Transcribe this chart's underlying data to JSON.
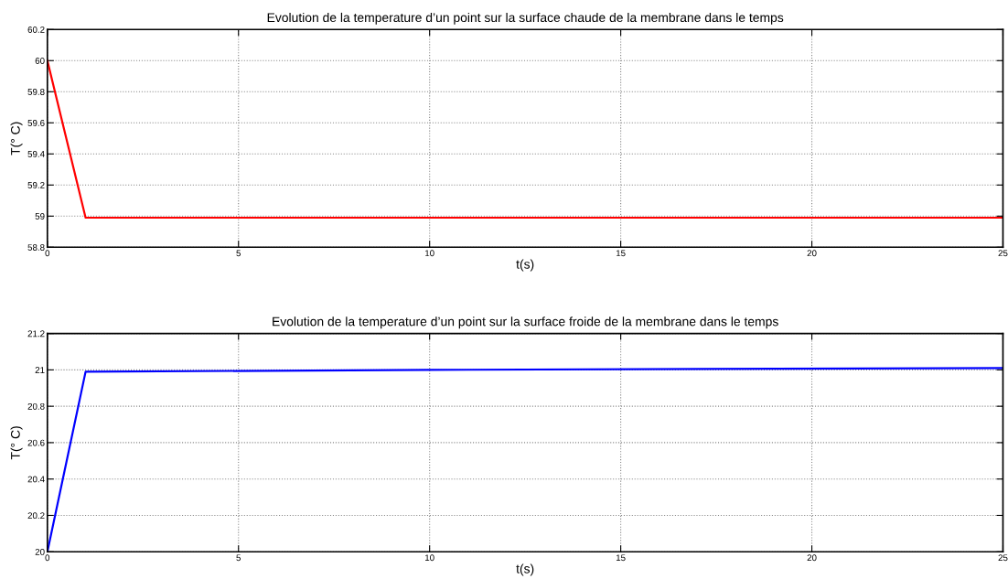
{
  "chart_data": [
    {
      "type": "line",
      "title": "Evolution de la temperature d’un point sur la surface chaude de la membrane dans le temps",
      "xlabel": "t(s)",
      "ylabel": "T(° C)",
      "xlim": [
        0,
        25
      ],
      "ylim": [
        58.8,
        60.2
      ],
      "xticks": [
        0,
        5,
        10,
        15,
        20,
        25
      ],
      "yticks": [
        58.8,
        59,
        59.2,
        59.4,
        59.6,
        59.8,
        60,
        60.2
      ],
      "grid": true,
      "line_style": "solid",
      "marker": "none",
      "series": [
        {
          "color": "#ff0000",
          "x": [
            0,
            1,
            25
          ],
          "values": [
            60,
            58.99,
            58.99
          ]
        }
      ]
    },
    {
      "type": "line",
      "title": "Evolution de la temperature d’un point sur la surface froide de la membrane dans le temps",
      "xlabel": "t(s)",
      "ylabel": "T(° C)",
      "xlim": [
        0,
        25
      ],
      "ylim": [
        20,
        21.2
      ],
      "xticks": [
        0,
        5,
        10,
        15,
        20,
        25
      ],
      "yticks": [
        20,
        20.2,
        20.4,
        20.6,
        20.8,
        21,
        21.2
      ],
      "grid": true,
      "line_style": "solid",
      "marker": "none",
      "series": [
        {
          "color": "#0000ff",
          "x": [
            0,
            1,
            10,
            25
          ],
          "values": [
            20,
            20.99,
            21,
            21.01
          ]
        }
      ]
    }
  ]
}
